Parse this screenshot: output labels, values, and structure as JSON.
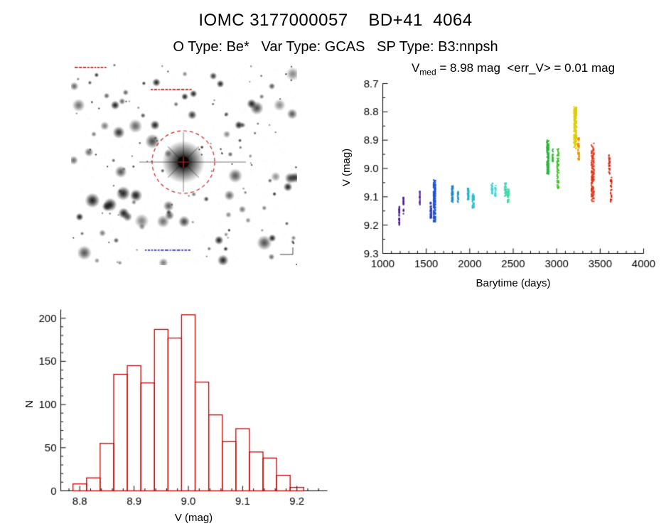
{
  "page": {
    "title": "IOMC 3177000057    BD+41  4064",
    "subtitle": "O Type: Be*   Var Type: GCAS   SP Type: B3:nnpsh"
  },
  "light_curve_header": {
    "prefix": "V",
    "sub": "med",
    "rest": " = 8.98 mag  <err_V> = 0.01 mag"
  },
  "finding_chart": {
    "style": "inverted-grayscale-star-field",
    "target_circle_color": "#cc2222",
    "annotation_color_top": "#cc2222",
    "annotation_color_bottom": "#3333bb"
  },
  "chart_data": [
    {
      "type": "scatter",
      "title": "V_med = 8.98 mag <err_V> = 0.01 mag",
      "xlabel": "Barytime (days)",
      "ylabel": "V (mag)",
      "xlim": [
        1000,
        4000
      ],
      "ylim": [
        8.7,
        9.3
      ],
      "y_axis_inverted": true,
      "grid": false,
      "legend": false,
      "marker": "small-square",
      "xticks": [
        1000,
        1500,
        2000,
        2500,
        3000,
        3500,
        4000
      ],
      "xtick_labels": [
        "1000",
        "1500",
        "2000",
        "2500",
        "3000",
        "3500",
        "4000"
      ],
      "yticks": [
        8.7,
        8.8,
        8.9,
        9.0,
        9.1,
        9.2,
        9.3
      ],
      "ytick_labels": [
        "8.7",
        "8.8",
        "8.9",
        "9.0",
        "9.1",
        "9.2",
        "9.3"
      ],
      "clusters": [
        {
          "x": [
            1183,
            1196
          ],
          "v": [
            9.13,
            9.2
          ],
          "color": "#4b1a86",
          "n": 35
        },
        {
          "x": [
            1232,
            1244
          ],
          "v": [
            9.1,
            9.16
          ],
          "color": "#4b1a86",
          "n": 22
        },
        {
          "x": [
            1420,
            1432
          ],
          "v": [
            9.08,
            9.13
          ],
          "color": "#5a2ea6",
          "n": 25
        },
        {
          "x": [
            1545,
            1562
          ],
          "v": [
            9.12,
            9.18
          ],
          "color": "#2b3fc4",
          "n": 45
        },
        {
          "x": [
            1580,
            1608
          ],
          "v": [
            9.04,
            9.19
          ],
          "color": "#1c52d8",
          "n": 150
        },
        {
          "x": [
            1790,
            1812
          ],
          "v": [
            9.06,
            9.12
          ],
          "color": "#1f86c9",
          "n": 55
        },
        {
          "x": [
            1858,
            1872
          ],
          "v": [
            9.08,
            9.12
          ],
          "color": "#1f9ac9",
          "n": 25
        },
        {
          "x": [
            1972,
            1992
          ],
          "v": [
            9.07,
            9.11
          ],
          "color": "#23b4d4",
          "n": 40
        },
        {
          "x": [
            2028,
            2052
          ],
          "v": [
            9.09,
            9.14
          ],
          "color": "#27bed8",
          "n": 45
        },
        {
          "x": [
            2248,
            2268
          ],
          "v": [
            9.05,
            9.09
          ],
          "color": "#3dd4de",
          "n": 35
        },
        {
          "x": [
            2288,
            2302
          ],
          "v": [
            9.06,
            9.1
          ],
          "color": "#3dd4de",
          "n": 22
        },
        {
          "x": [
            2398,
            2422
          ],
          "v": [
            9.05,
            9.1
          ],
          "color": "#3cd8b4",
          "n": 40
        },
        {
          "x": [
            2430,
            2452
          ],
          "v": [
            9.07,
            9.12
          ],
          "color": "#3cd89a",
          "n": 30
        },
        {
          "x": [
            2886,
            2912
          ],
          "v": [
            8.9,
            9.02
          ],
          "color": "#2eb43c",
          "n": 130
        },
        {
          "x": [
            2946,
            2962
          ],
          "v": [
            8.93,
            8.98
          ],
          "color": "#2eb43c",
          "n": 16
        },
        {
          "x": [
            3002,
            3028
          ],
          "v": [
            8.93,
            9.07
          ],
          "color": "#46c22e",
          "n": 75
        },
        {
          "x": [
            3196,
            3232
          ],
          "v": [
            8.78,
            8.93
          ],
          "color": "#ddcf00",
          "n": 180
        },
        {
          "x": [
            3240,
            3262
          ],
          "v": [
            8.89,
            8.97
          ],
          "color": "#ee9000",
          "n": 45
        },
        {
          "x": [
            3396,
            3432
          ],
          "v": [
            8.91,
            9.12
          ],
          "color": "#e03314",
          "n": 140
        },
        {
          "x": [
            3598,
            3612
          ],
          "v": [
            8.95,
            9.02
          ],
          "color": "#d42410",
          "n": 25
        },
        {
          "x": [
            3618,
            3634
          ],
          "v": [
            9.03,
            9.12
          ],
          "color": "#d42410",
          "n": 30
        }
      ]
    },
    {
      "type": "histogram",
      "xlabel": "V (mag)",
      "ylabel": "N",
      "bin_start": 8.7875,
      "bin_width": 0.025,
      "counts": [
        8,
        15,
        55,
        135,
        145,
        125,
        187,
        177,
        204,
        126,
        88,
        57,
        72,
        45,
        38,
        18,
        4
      ],
      "xlim": [
        8.765,
        9.256
      ],
      "ylim": [
        0,
        210
      ],
      "grid": false,
      "xticks": [
        8.8,
        8.9,
        9.0,
        9.1,
        9.2
      ],
      "xtick_labels": [
        "8.8",
        "8.9",
        "9.0",
        "9.1",
        "9.2"
      ],
      "yticks": [
        0,
        50,
        100,
        150,
        200
      ],
      "ytick_labels": [
        "0",
        "50",
        "100",
        "150",
        "200"
      ],
      "bar_color": "#c40000"
    }
  ]
}
